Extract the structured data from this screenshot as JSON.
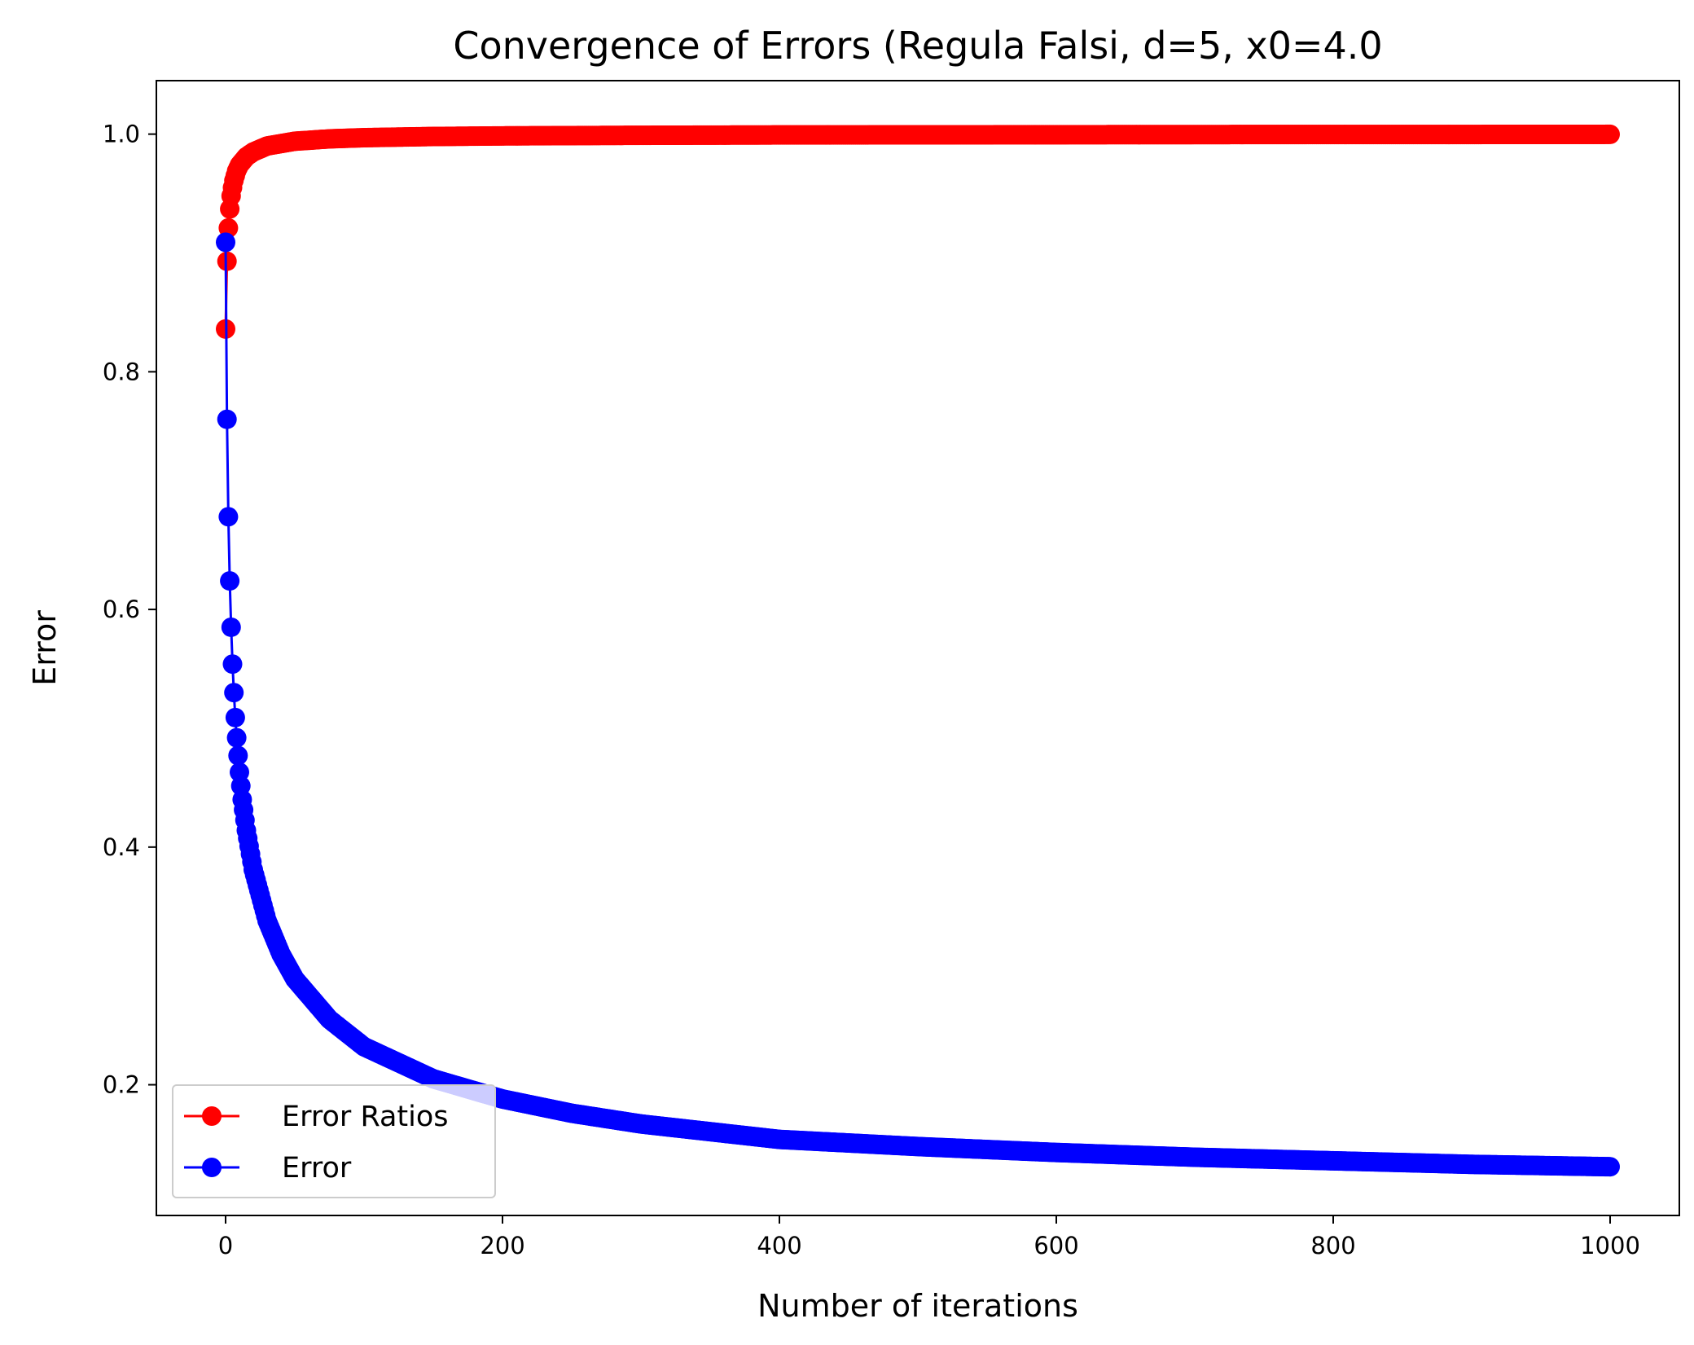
{
  "chart_data": {
    "type": "line",
    "title": "Convergence of Errors (Regula Falsi, d=5, x0=4.0",
    "xlabel": "Number of iterations",
    "ylabel": "Error",
    "xlim": [
      -50,
      1050
    ],
    "ylim": [
      0.09,
      1.045
    ],
    "xticks": [
      0,
      200,
      400,
      600,
      800,
      1000
    ],
    "yticks": [
      0.2,
      0.4,
      0.6,
      0.8,
      1.0
    ],
    "xtick_labels": [
      "0",
      "200",
      "400",
      "600",
      "800",
      "1000"
    ],
    "ytick_labels": [
      "0.2",
      "0.4",
      "0.6",
      "0.8",
      "1.0"
    ],
    "grid": false,
    "legend_position": "lower-left",
    "legend": [
      "Error Ratios",
      "Error"
    ],
    "series": [
      {
        "name": "Error Ratios",
        "color": "#ff0000",
        "marker": "circle",
        "x": [
          0,
          1,
          2,
          3,
          4,
          5,
          6,
          8,
          10,
          15,
          20,
          30,
          50,
          75,
          100,
          150,
          200,
          300,
          400,
          500,
          600,
          700,
          800,
          900,
          1000
        ],
        "y": [
          0.836,
          0.893,
          0.921,
          0.937,
          0.948,
          0.955,
          0.961,
          0.969,
          0.974,
          0.981,
          0.985,
          0.99,
          0.994,
          0.996,
          0.997,
          0.998,
          0.9985,
          0.999,
          0.9993,
          0.9994,
          0.9995,
          0.9996,
          0.9997,
          0.9997,
          0.9998
        ]
      },
      {
        "name": "Error",
        "color": "#0000ff",
        "marker": "circle",
        "x": [
          0,
          1,
          2,
          3,
          4,
          5,
          6,
          7,
          8,
          9,
          10,
          12,
          15,
          20,
          30,
          40,
          50,
          75,
          100,
          150,
          200,
          250,
          300,
          400,
          500,
          600,
          700,
          800,
          900,
          1000
        ],
        "y": [
          0.909,
          0.76,
          0.678,
          0.624,
          0.585,
          0.554,
          0.53,
          0.509,
          0.492,
          0.477,
          0.463,
          0.44,
          0.414,
          0.381,
          0.338,
          0.31,
          0.289,
          0.255,
          0.232,
          0.205,
          0.188,
          0.176,
          0.167,
          0.154,
          0.148,
          0.143,
          0.139,
          0.136,
          0.133,
          0.131
        ]
      }
    ]
  }
}
